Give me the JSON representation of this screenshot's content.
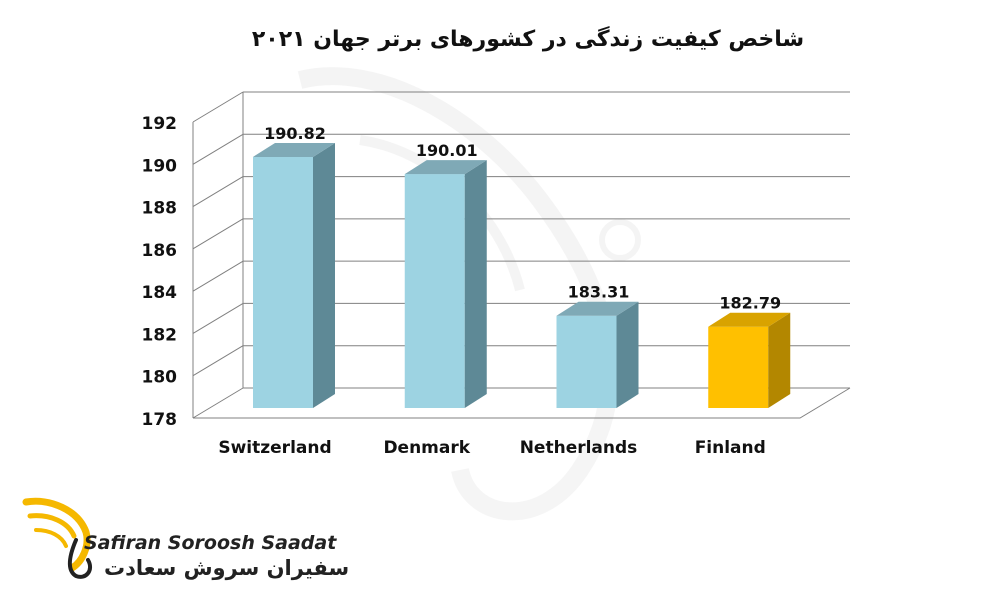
{
  "chart_data": {
    "type": "bar",
    "title": "شاخص کیفیت زندگی در کشورهای برتر جهان ۲۰۲۱",
    "categories": [
      "Switzerland",
      "Denmark",
      "Netherlands",
      "Finland"
    ],
    "values": [
      190.82,
      190.01,
      183.31,
      182.79
    ],
    "data_labels": [
      "190.82",
      "190.01",
      "183.31",
      "182.79"
    ],
    "ylim": [
      178,
      192
    ],
    "yticks": [
      178,
      180,
      182,
      184,
      186,
      188,
      190,
      192
    ],
    "grid": true,
    "style": "3d",
    "colors": {
      "default_bar": "#9dd3e2",
      "default_bar_side": "#5e8996",
      "default_bar_top": "#7fa9b6",
      "highlight_bar": "#ffc000",
      "highlight_bar_side": "#b38700",
      "highlight_bar_top": "#d9a300",
      "grid": "#808080"
    },
    "highlight_index": 3
  },
  "logo": {
    "text_en": "Safiran Soroosh Saadat",
    "text_fa": "سفیران سروش سعادت",
    "color": "#f5b800"
  }
}
